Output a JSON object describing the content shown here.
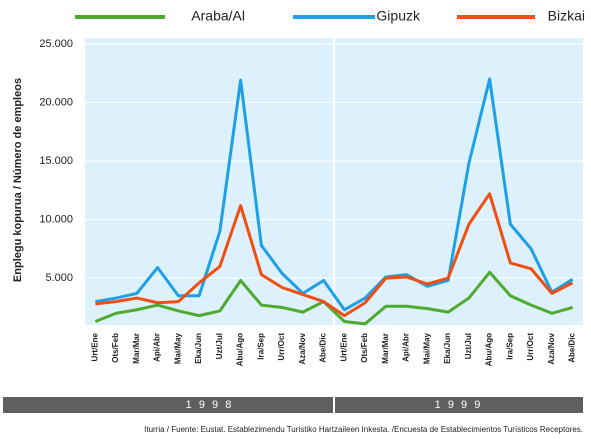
{
  "chart_data": {
    "type": "line",
    "y_label": "Enplegu kopurua / Número de empleos",
    "source": "Iturria / Fuente: Eustat. Establezimendu Turistiko Hartzaileen Inkesta. /Encuesta de Establecimientos Turísticos Receptores.",
    "groups": [
      "1 9 9 8",
      "1 9 9 9"
    ],
    "categories": [
      "Urt/Ene",
      "Ots/Feb",
      "Mar/Mar",
      "Api/Abr",
      "Mai/May",
      "Eka/Jun",
      "Uzt/Jul",
      "Abu/Ago",
      "Ira/Sep",
      "Urr/Oct",
      "Aza/Nov",
      "Abe/Dic",
      "Urt/Ene",
      "Ots/Feb",
      "Mar/Mar",
      "Api/Abr",
      "Mai/May",
      "Eka/Jun",
      "Uzt/Jul",
      "Abu/Ago",
      "Ira/Sep",
      "Urr/Oct",
      "Aza/Nov",
      "Abe/Dic"
    ],
    "series": [
      {
        "name": "Araba/Al",
        "color": "#4fab2f",
        "values": [
          1300,
          2000,
          2300,
          2700,
          2200,
          1800,
          2200,
          4800,
          2700,
          2500,
          2100,
          3000,
          1300,
          1100,
          2600,
          2600,
          2400,
          2100,
          3300,
          5500,
          3500,
          2700,
          2000,
          2500
        ]
      },
      {
        "name": "Gipuzk",
        "color": "#1ea0e6",
        "values": [
          3000,
          3300,
          3700,
          5900,
          3500,
          3500,
          9000,
          21900,
          7800,
          5400,
          3700,
          4800,
          2300,
          3300,
          5100,
          5300,
          4300,
          4800,
          14800,
          22000,
          9600,
          7500,
          3800,
          4900
        ]
      },
      {
        "name": "Bizkai",
        "color": "#f04e12",
        "values": [
          2800,
          3000,
          3300,
          2900,
          3000,
          4600,
          6000,
          11200,
          5300,
          4200,
          3600,
          3000,
          1800,
          2900,
          5000,
          5100,
          4500,
          5000,
          9600,
          12200,
          6300,
          5800,
          3700,
          4600
        ]
      }
    ],
    "ylim": [
      1000,
      25500
    ],
    "yticks": [
      {
        "value": 5000,
        "label": "5.000"
      },
      {
        "value": 10000,
        "label": "10.000"
      },
      {
        "value": 15000,
        "label": "15.000"
      },
      {
        "value": 20000,
        "label": "20.000"
      },
      {
        "value": 25000,
        "label": "25.000"
      }
    ],
    "grid": true
  }
}
